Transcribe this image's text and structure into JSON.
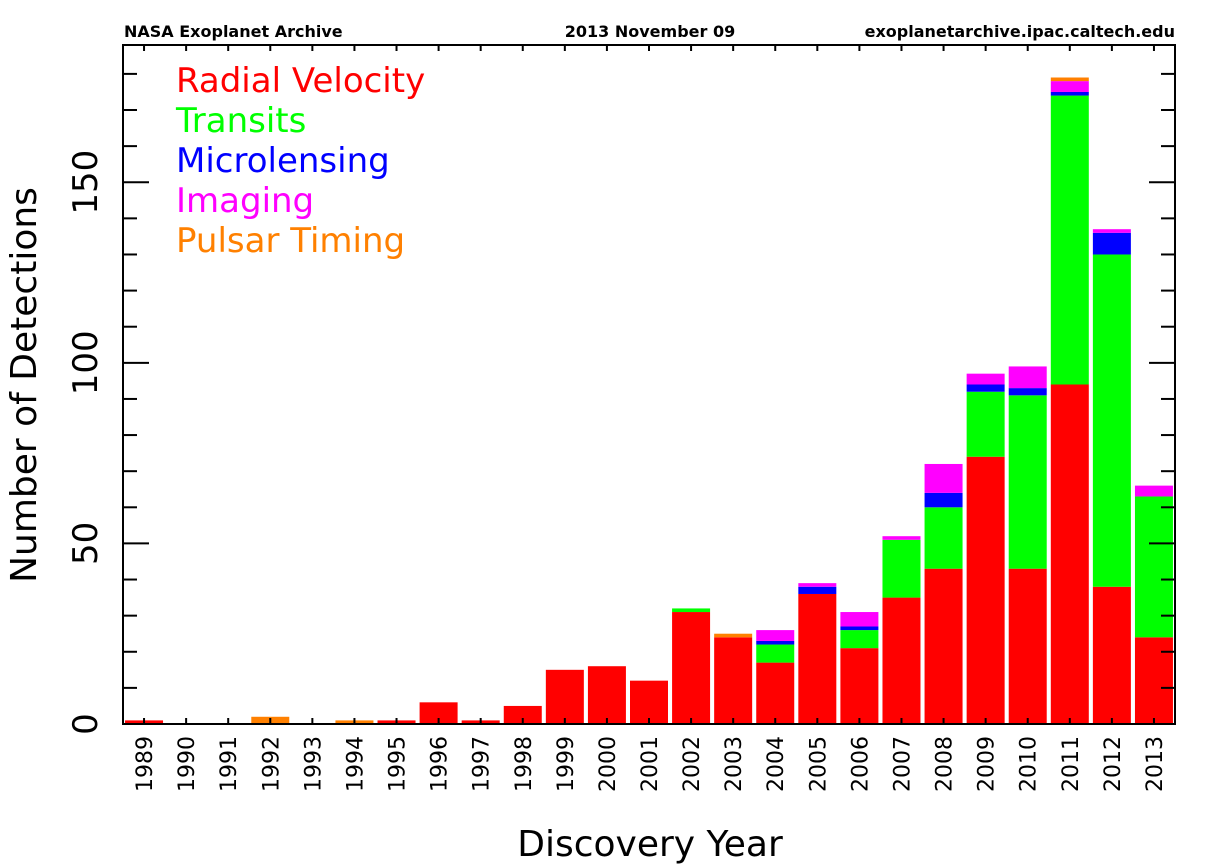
{
  "header": {
    "left": "NASA Exoplanet Archive",
    "center": "2013 November 09",
    "right": "exoplanetarchive.ipac.caltech.edu"
  },
  "chart_data": {
    "type": "bar",
    "stacked": true,
    "title": "",
    "xlabel": "Discovery Year",
    "ylabel": "Number of Detections",
    "ylim": [
      0,
      188
    ],
    "yticks": [
      0,
      50,
      100,
      150
    ],
    "grid": false,
    "legend_position": "top-left",
    "categories": [
      "1989",
      "1990",
      "1991",
      "1992",
      "1993",
      "1994",
      "1995",
      "1996",
      "1997",
      "1998",
      "1999",
      "2000",
      "2001",
      "2002",
      "2003",
      "2004",
      "2005",
      "2006",
      "2007",
      "2008",
      "2009",
      "2010",
      "2011",
      "2012",
      "2013"
    ],
    "series": [
      {
        "name": "Radial Velocity",
        "color": "#ff0000",
        "values": [
          1,
          0,
          0,
          0,
          0,
          0,
          1,
          6,
          1,
          5,
          15,
          16,
          12,
          31,
          24,
          17,
          36,
          21,
          35,
          43,
          74,
          43,
          94,
          38,
          24
        ]
      },
      {
        "name": "Transits",
        "color": "#00ff00",
        "values": [
          0,
          0,
          0,
          0,
          0,
          0,
          0,
          0,
          0,
          0,
          0,
          0,
          0,
          1,
          0,
          5,
          0,
          5,
          16,
          17,
          18,
          48,
          80,
          92,
          39
        ]
      },
      {
        "name": "Microlensing",
        "color": "#0000ff",
        "values": [
          0,
          0,
          0,
          0,
          0,
          0,
          0,
          0,
          0,
          0,
          0,
          0,
          0,
          0,
          0,
          1,
          2,
          1,
          0,
          4,
          2,
          2,
          1,
          6,
          0
        ]
      },
      {
        "name": "Imaging",
        "color": "#ff00ff",
        "values": [
          0,
          0,
          0,
          0,
          0,
          0,
          0,
          0,
          0,
          0,
          0,
          0,
          0,
          0,
          0,
          3,
          1,
          4,
          1,
          8,
          3,
          6,
          3,
          1,
          3
        ]
      },
      {
        "name": "Pulsar Timing",
        "color": "#ff8000",
        "values": [
          0,
          0,
          0,
          2,
          0,
          1,
          0,
          0,
          0,
          0,
          0,
          0,
          0,
          0,
          1,
          0,
          0,
          0,
          0,
          0,
          0,
          0,
          1,
          0,
          0
        ]
      }
    ]
  }
}
